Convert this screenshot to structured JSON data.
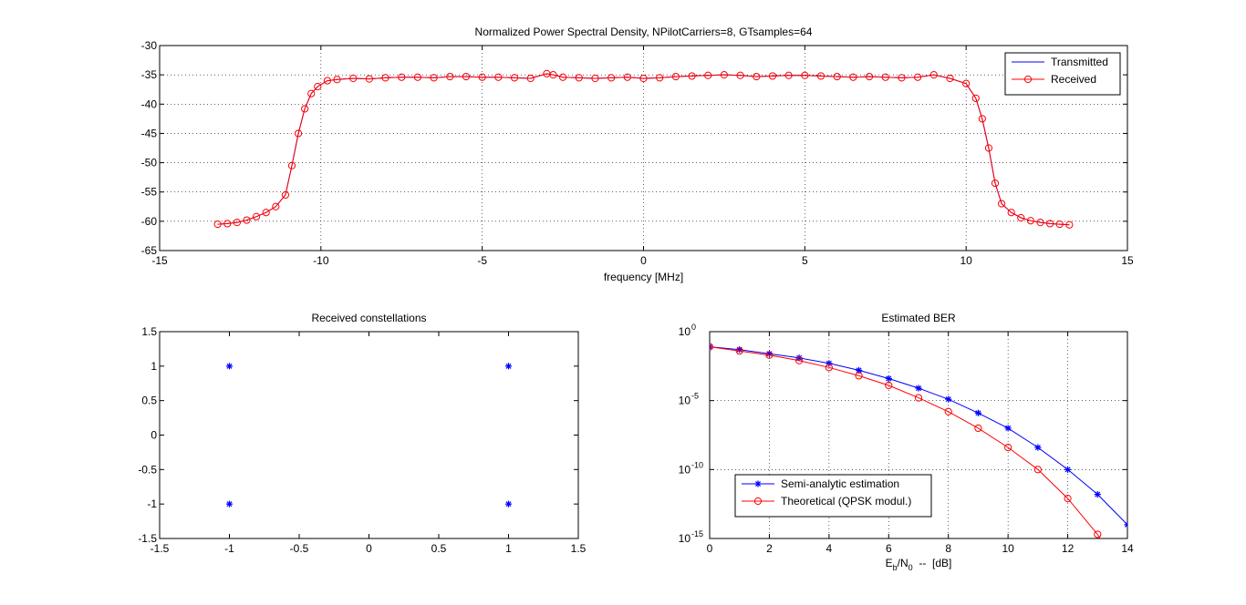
{
  "figure": {
    "background": "#ffffff"
  },
  "chart_data": [
    {
      "id": "psd",
      "type": "line",
      "title": "Normalized Power Spectral Density, NPilotCarriers=8, GTsamples=64",
      "xlabel": "frequency [MHz]",
      "ylabel": "",
      "xlim": [
        -15,
        15
      ],
      "ylim": [
        -65,
        -30
      ],
      "xticks": [
        -15,
        -10,
        -5,
        0,
        5,
        10,
        15
      ],
      "yticks": [
        -30,
        -35,
        -40,
        -45,
        -50,
        -55,
        -60,
        -65
      ],
      "grid": true,
      "legend": {
        "placement": "top-right",
        "entries": [
          "Transmitted",
          "Received"
        ]
      },
      "series": [
        {
          "name": "Transmitted",
          "color": "#0000ff",
          "marker": "none",
          "x": [
            -13.2,
            -12.9,
            -12.6,
            -12.3,
            -12.0,
            -11.7,
            -11.4,
            -11.1,
            -10.9,
            -10.7,
            -10.5,
            -10.3,
            -10.1,
            -9.8,
            -9.5,
            -9.0,
            -8.5,
            -8.0,
            -7.5,
            -7.0,
            -6.5,
            -6.0,
            -5.5,
            -5.0,
            -4.5,
            -4.0,
            -3.5,
            -3.0,
            -2.8,
            -2.5,
            -2.0,
            -1.5,
            -1.0,
            -0.5,
            0.0,
            0.5,
            1.0,
            1.5,
            2.0,
            2.5,
            3.0,
            3.5,
            4.0,
            4.5,
            5.0,
            5.5,
            6.0,
            6.5,
            7.0,
            7.5,
            8.0,
            8.5,
            9.0,
            9.5,
            10.0,
            10.3,
            10.5,
            10.7,
            10.9,
            11.1,
            11.4,
            11.7,
            12.0,
            12.3,
            12.6,
            12.9,
            13.2
          ],
          "y": [
            -60.5,
            -60.4,
            -60.2,
            -59.8,
            -59.2,
            -58.5,
            -57.5,
            -55.5,
            -50.5,
            -45.0,
            -40.8,
            -38.2,
            -37.0,
            -36.0,
            -35.8,
            -35.6,
            -35.7,
            -35.5,
            -35.4,
            -35.4,
            -35.5,
            -35.3,
            -35.3,
            -35.4,
            -35.4,
            -35.5,
            -35.6,
            -34.8,
            -35.0,
            -35.4,
            -35.5,
            -35.6,
            -35.5,
            -35.4,
            -35.6,
            -35.5,
            -35.3,
            -35.2,
            -35.1,
            -35.0,
            -35.1,
            -35.3,
            -35.2,
            -35.1,
            -35.1,
            -35.2,
            -35.3,
            -35.4,
            -35.3,
            -35.4,
            -35.5,
            -35.4,
            -35.0,
            -35.6,
            -36.5,
            -39.0,
            -42.5,
            -47.5,
            -53.5,
            -57.0,
            -58.5,
            -59.4,
            -59.9,
            -60.2,
            -60.4,
            -60.5,
            -60.6
          ]
        },
        {
          "name": "Received",
          "color": "#ff0000",
          "marker": "circle",
          "x": [
            -13.2,
            -12.9,
            -12.6,
            -12.3,
            -12.0,
            -11.7,
            -11.4,
            -11.1,
            -10.9,
            -10.7,
            -10.5,
            -10.3,
            -10.1,
            -9.8,
            -9.5,
            -9.0,
            -8.5,
            -8.0,
            -7.5,
            -7.0,
            -6.5,
            -6.0,
            -5.5,
            -5.0,
            -4.5,
            -4.0,
            -3.5,
            -3.0,
            -2.8,
            -2.5,
            -2.0,
            -1.5,
            -1.0,
            -0.5,
            0.0,
            0.5,
            1.0,
            1.5,
            2.0,
            2.5,
            3.0,
            3.5,
            4.0,
            4.5,
            5.0,
            5.5,
            6.0,
            6.5,
            7.0,
            7.5,
            8.0,
            8.5,
            9.0,
            9.5,
            10.0,
            10.3,
            10.5,
            10.7,
            10.9,
            11.1,
            11.4,
            11.7,
            12.0,
            12.3,
            12.6,
            12.9,
            13.2
          ],
          "y": [
            -60.5,
            -60.4,
            -60.2,
            -59.8,
            -59.2,
            -58.5,
            -57.5,
            -55.5,
            -50.5,
            -45.0,
            -40.8,
            -38.2,
            -37.0,
            -36.0,
            -35.8,
            -35.6,
            -35.7,
            -35.5,
            -35.4,
            -35.4,
            -35.5,
            -35.3,
            -35.3,
            -35.4,
            -35.4,
            -35.5,
            -35.6,
            -34.8,
            -35.0,
            -35.4,
            -35.5,
            -35.6,
            -35.5,
            -35.4,
            -35.6,
            -35.5,
            -35.3,
            -35.2,
            -35.1,
            -35.0,
            -35.1,
            -35.3,
            -35.2,
            -35.1,
            -35.1,
            -35.2,
            -35.3,
            -35.4,
            -35.3,
            -35.4,
            -35.5,
            -35.4,
            -35.0,
            -35.6,
            -36.5,
            -39.0,
            -42.5,
            -47.5,
            -53.5,
            -57.0,
            -58.5,
            -59.4,
            -59.9,
            -60.2,
            -60.4,
            -60.5,
            -60.6
          ]
        }
      ]
    },
    {
      "id": "constellation",
      "type": "scatter",
      "title": "Received constellations",
      "xlabel": "",
      "ylabel": "",
      "xlim": [
        -1.5,
        1.5
      ],
      "ylim": [
        -1.5,
        1.5
      ],
      "xticks": [
        -1.5,
        -1,
        -0.5,
        0,
        0.5,
        1,
        1.5
      ],
      "yticks": [
        1.5,
        1,
        0.5,
        0,
        -0.5,
        -1,
        -1.5
      ],
      "grid": false,
      "series": [
        {
          "name": "",
          "color": "#0000ff",
          "marker": "asterisk",
          "x": [
            -1,
            1,
            -1,
            1
          ],
          "y": [
            1,
            1,
            -1,
            -1
          ]
        }
      ]
    },
    {
      "id": "ber",
      "type": "line",
      "title": "Estimated BER",
      "xlabel": "E_b/N_0  --  [dB]",
      "xlabel_parts": {
        "main": "E",
        "sub1": "b",
        "mid": "/N",
        "sub2": "0",
        "tail": "  --  [dB]"
      },
      "ylabel": "",
      "yscale": "log",
      "xlim": [
        0,
        14
      ],
      "ylim_exp": [
        -15,
        0
      ],
      "xticks": [
        0,
        2,
        4,
        6,
        8,
        10,
        12,
        14
      ],
      "yticks_exp": [
        0,
        -5,
        -10,
        -15
      ],
      "ytick_base": "10",
      "grid": true,
      "legend": {
        "placement": "bottom-left",
        "entries": [
          "Semi-analytic estimation",
          "Theoretical (QPSK modul.)"
        ]
      },
      "series": [
        {
          "name": "Semi-analytic estimation",
          "color": "#0000ff",
          "marker": "asterisk",
          "x": [
            0,
            1,
            2,
            3,
            4,
            5,
            6,
            7,
            8,
            9,
            10,
            11,
            12,
            13,
            14
          ],
          "y_log10": [
            -1.1,
            -1.3,
            -1.6,
            -1.9,
            -2.3,
            -2.8,
            -3.4,
            -4.1,
            -4.9,
            -5.9,
            -7.0,
            -8.4,
            -10.0,
            -11.8,
            -14.0
          ]
        },
        {
          "name": "Theoretical (QPSK modul.)",
          "color": "#ff0000",
          "marker": "circle",
          "x": [
            0,
            1,
            2,
            3,
            4,
            5,
            6,
            7,
            8,
            9,
            10,
            11,
            12,
            13,
            14
          ],
          "y_log10": [
            -1.1,
            -1.4,
            -1.7,
            -2.1,
            -2.6,
            -3.2,
            -3.9,
            -4.8,
            -5.8,
            -7.0,
            -8.4,
            -10.0,
            -12.1,
            -14.7,
            -18.1
          ]
        }
      ]
    }
  ]
}
